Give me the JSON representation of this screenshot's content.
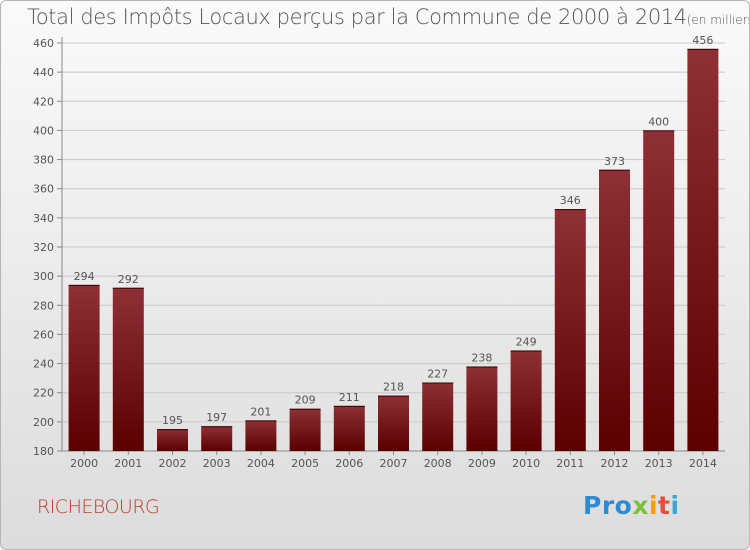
{
  "title": "Total des Impôts Locaux perçus par la Commune de 2000 à 2014",
  "title_unit": "(en milliers d'€)",
  "commune": "RICHEBOURG",
  "logo": {
    "parts": [
      "Pro",
      "x",
      "i",
      "t",
      "i"
    ],
    "colors": [
      "#2e8bd3",
      "#7cbf3a",
      "#f39c12",
      "#e74c3c",
      "#3aa7d9"
    ]
  },
  "colors": {
    "bar_light": "#8e3036",
    "bar_dark": "#5a0000",
    "text": "#555555",
    "grid": "#c8c8c8",
    "commune": "#c0392b"
  },
  "chart_data": {
    "type": "bar",
    "title": "Total des Impôts Locaux perçus par la Commune de 2000 à 2014",
    "xlabel": "",
    "ylabel": "",
    "categories": [
      "2000",
      "2001",
      "2002",
      "2003",
      "2004",
      "2005",
      "2006",
      "2007",
      "2008",
      "2009",
      "2010",
      "2011",
      "2012",
      "2013",
      "2014"
    ],
    "values": [
      294,
      292,
      195,
      197,
      201,
      209,
      211,
      218,
      227,
      238,
      249,
      346,
      373,
      400,
      456
    ],
    "ylim": [
      180,
      460
    ],
    "yticks": [
      180,
      200,
      220,
      240,
      260,
      280,
      300,
      320,
      340,
      360,
      380,
      400,
      420,
      440,
      460
    ],
    "grid": true
  }
}
